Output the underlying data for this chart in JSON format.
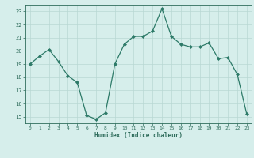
{
  "x": [
    0,
    1,
    2,
    3,
    4,
    5,
    6,
    7,
    8,
    9,
    10,
    11,
    12,
    13,
    14,
    15,
    16,
    17,
    18,
    19,
    20,
    21,
    22,
    23
  ],
  "y": [
    19.0,
    19.6,
    20.1,
    19.2,
    18.1,
    17.6,
    15.1,
    14.8,
    15.3,
    19.0,
    20.5,
    21.1,
    21.1,
    21.5,
    23.2,
    21.1,
    20.5,
    20.3,
    20.3,
    20.6,
    19.4,
    19.5,
    18.2,
    15.2
  ],
  "line_color": "#2d7a68",
  "marker_color": "#2d7a68",
  "bg_color": "#d6eeeb",
  "grid_color": "#b8d8d4",
  "axis_label_color": "#2d6b5a",
  "tick_color": "#2d6b5a",
  "xlabel": "Humidex (Indice chaleur)",
  "ylim": [
    14.5,
    23.5
  ],
  "xlim": [
    -0.5,
    23.5
  ],
  "yticks": [
    15,
    16,
    17,
    18,
    19,
    20,
    21,
    22,
    23
  ],
  "xticks": [
    0,
    1,
    2,
    3,
    4,
    5,
    6,
    7,
    8,
    9,
    10,
    11,
    12,
    13,
    14,
    15,
    16,
    17,
    18,
    19,
    20,
    21,
    22,
    23
  ]
}
